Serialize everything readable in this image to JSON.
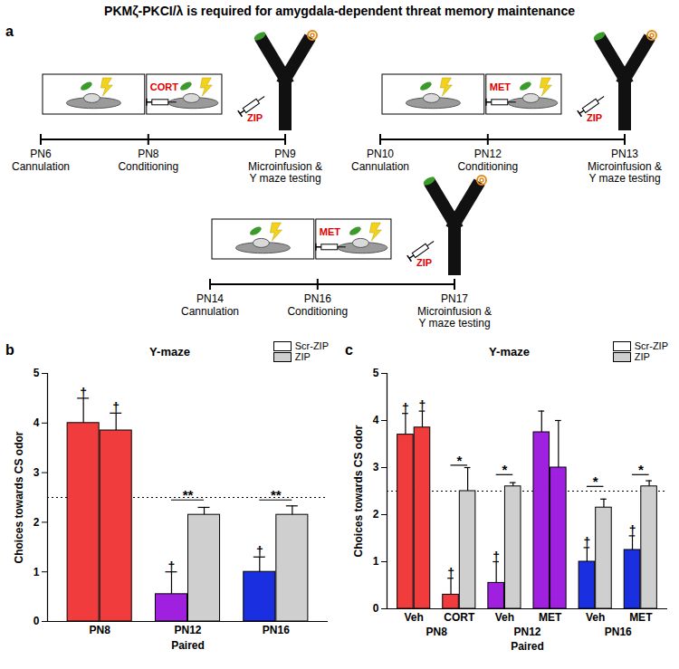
{
  "title": "PKMζ-PKCI/λ is required for amygdala-dependent threat memory maintenance",
  "panel_a": {
    "label": "a",
    "timelines": [
      {
        "steps": [
          {
            "day": "PN6",
            "event": [
              "Cannulation"
            ]
          },
          {
            "day": "PN8",
            "event": [
              "Conditioning"
            ],
            "drug": "CORT"
          },
          {
            "day": "PN9",
            "event": [
              "Microinfusion &",
              "Y maze testing"
            ],
            "drug": "ZIP"
          }
        ]
      },
      {
        "steps": [
          {
            "day": "PN10",
            "event": [
              "Cannulation"
            ]
          },
          {
            "day": "PN12",
            "event": [
              "Conditioning"
            ],
            "drug": "MET"
          },
          {
            "day": "PN13",
            "event": [
              "Microinfusion &",
              "Y maze testing"
            ],
            "drug": "ZIP"
          }
        ]
      },
      {
        "steps": [
          {
            "day": "PN14",
            "event": [
              "Cannulation"
            ]
          },
          {
            "day": "PN16",
            "event": [
              "Conditioning"
            ],
            "drug": "MET"
          },
          {
            "day": "PN17",
            "event": [
              "Microinfusion &",
              "Y maze testing"
            ],
            "drug": "ZIP"
          }
        ]
      }
    ]
  },
  "chart_data": [
    {
      "type": "bar",
      "panel": "b",
      "title": "Y-maze",
      "ylabel": "Choices towards CS odor",
      "xlabel": "Paired",
      "categories": [
        "PN8",
        "PN12",
        "PN16"
      ],
      "series": [
        {
          "name": "Scr-ZIP",
          "color": "#ffffff",
          "colors": [
            "#f03c3c",
            "#a020e0",
            "#1a2fe0"
          ],
          "values": [
            4.0,
            0.55,
            1.0
          ],
          "errors": [
            0.5,
            0.45,
            0.3
          ],
          "symbols": [
            "†",
            "†",
            "†"
          ]
        },
        {
          "name": "ZIP",
          "color": "#cfcfcf",
          "colors": [
            "#f03c3c",
            "#cfcfcf",
            "#cfcfcf"
          ],
          "values": [
            3.85,
            2.15,
            2.15
          ],
          "errors": [
            0.35,
            0.15,
            0.18
          ],
          "symbols": [
            "†",
            null,
            null
          ]
        }
      ],
      "reference_line": 2.5,
      "significance": [
        {
          "category": 1,
          "label": "**",
          "y": 2.45
        },
        {
          "category": 2,
          "label": "**",
          "y": 2.45
        }
      ],
      "ylim": [
        0,
        5
      ],
      "yticks": [
        0,
        1,
        2,
        3,
        4,
        5
      ],
      "legend": "top-right"
    },
    {
      "type": "bar",
      "panel": "c",
      "title": "Y-maze",
      "ylabel": "Choices towards CS odor",
      "xlabel": "Paired",
      "categories": [
        "Veh",
        "CORT",
        "Veh",
        "MET",
        "Veh",
        "MET"
      ],
      "groups": [
        "PN8",
        "PN8",
        "PN12",
        "PN12",
        "PN16",
        "PN16"
      ],
      "series": [
        {
          "name": "Scr-ZIP",
          "color": "#ffffff",
          "colors": [
            "#f03c3c",
            "#f03c3c",
            "#a020e0",
            "#a020e0",
            "#1a2fe0",
            "#1a2fe0"
          ],
          "values": [
            3.7,
            0.3,
            0.55,
            3.75,
            1.0,
            1.25
          ],
          "errors": [
            0.45,
            0.35,
            0.45,
            0.45,
            0.3,
            0.3
          ],
          "symbols": [
            "†",
            "†",
            "†",
            null,
            "†",
            "†"
          ]
        },
        {
          "name": "ZIP",
          "color": "#cfcfcf",
          "colors": [
            "#f03c3c",
            "#cfcfcf",
            "#cfcfcf",
            "#a020e0",
            "#cfcfcf",
            "#cfcfcf"
          ],
          "values": [
            3.85,
            2.5,
            2.6,
            3.0,
            2.15,
            2.6
          ],
          "errors": [
            0.35,
            0.5,
            0.08,
            1.0,
            0.18,
            0.12
          ],
          "symbols": [
            "†",
            null,
            null,
            null,
            null,
            null
          ]
        }
      ],
      "reference_line": 2.5,
      "significance": [
        {
          "category": 1,
          "label": "*",
          "y": 3.05
        },
        {
          "category": 2,
          "label": "*",
          "y": 2.85
        },
        {
          "category": 4,
          "label": "*",
          "y": 2.6
        },
        {
          "category": 5,
          "label": "*",
          "y": 2.85
        }
      ],
      "ylim": [
        0,
        5
      ],
      "yticks": [
        0,
        1,
        2,
        3,
        4,
        5
      ],
      "legend": "top-right"
    }
  ]
}
